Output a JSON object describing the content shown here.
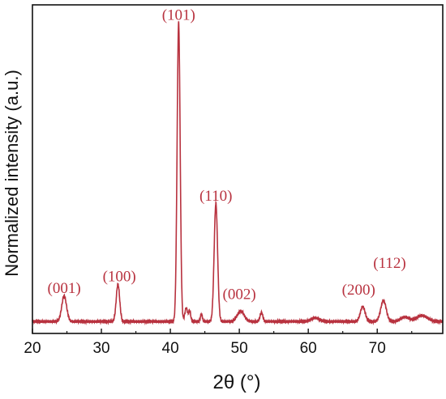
{
  "chart_data": {
    "type": "line",
    "xlabel": "2θ (°)",
    "ylabel": "Normalized intensity (a.u.)",
    "xlim": [
      20,
      79.5
    ],
    "ylim": [
      0,
      1.1
    ],
    "xticks": [
      20,
      30,
      40,
      50,
      60,
      70
    ],
    "grid": false,
    "colors": {
      "line": "#b8323f",
      "label": "#b8323f",
      "axis": "#111111"
    },
    "baseline": 0.04,
    "peaks": [
      {
        "x": 24.6,
        "y": 0.085,
        "w": 0.35,
        "label": "(001)",
        "label_x": 24.6,
        "label_y": 0.135
      },
      {
        "x": 32.4,
        "y": 0.125,
        "w": 0.25,
        "label": "(100)",
        "label_x": 32.6,
        "label_y": 0.175
      },
      {
        "x": 41.2,
        "y": 1.0,
        "w": 0.22,
        "label": "(101)",
        "label_x": 41.2,
        "label_y": 1.05
      },
      {
        "x": 42.3,
        "y": 0.045,
        "w": 0.2,
        "label": "",
        "label_x": 0,
        "label_y": 0
      },
      {
        "x": 42.8,
        "y": 0.035,
        "w": 0.15,
        "label": "",
        "label_x": 0,
        "label_y": 0
      },
      {
        "x": 44.5,
        "y": 0.025,
        "w": 0.15,
        "label": "",
        "label_x": 0,
        "label_y": 0
      },
      {
        "x": 46.6,
        "y": 0.395,
        "w": 0.25,
        "label": "(110)",
        "label_x": 46.6,
        "label_y": 0.445
      },
      {
        "x": 50.2,
        "y": 0.035,
        "w": 0.5,
        "label": "(002)",
        "label_x": 50.0,
        "label_y": 0.115
      },
      {
        "x": 53.2,
        "y": 0.03,
        "w": 0.2,
        "label": "",
        "label_x": 0,
        "label_y": 0
      },
      {
        "x": 61.0,
        "y": 0.012,
        "w": 0.6,
        "label": "",
        "label_x": 0,
        "label_y": 0
      },
      {
        "x": 67.9,
        "y": 0.05,
        "w": 0.35,
        "label": "(200)",
        "label_x": 67.3,
        "label_y": 0.13
      },
      {
        "x": 70.9,
        "y": 0.07,
        "w": 0.4,
        "label": "(112)",
        "label_x": 71.8,
        "label_y": 0.22
      },
      {
        "x": 74.0,
        "y": 0.015,
        "w": 0.6,
        "label": "",
        "label_x": 0,
        "label_y": 0
      },
      {
        "x": 76.5,
        "y": 0.02,
        "w": 0.8,
        "label": "",
        "label_x": 0,
        "label_y": 0
      }
    ]
  }
}
